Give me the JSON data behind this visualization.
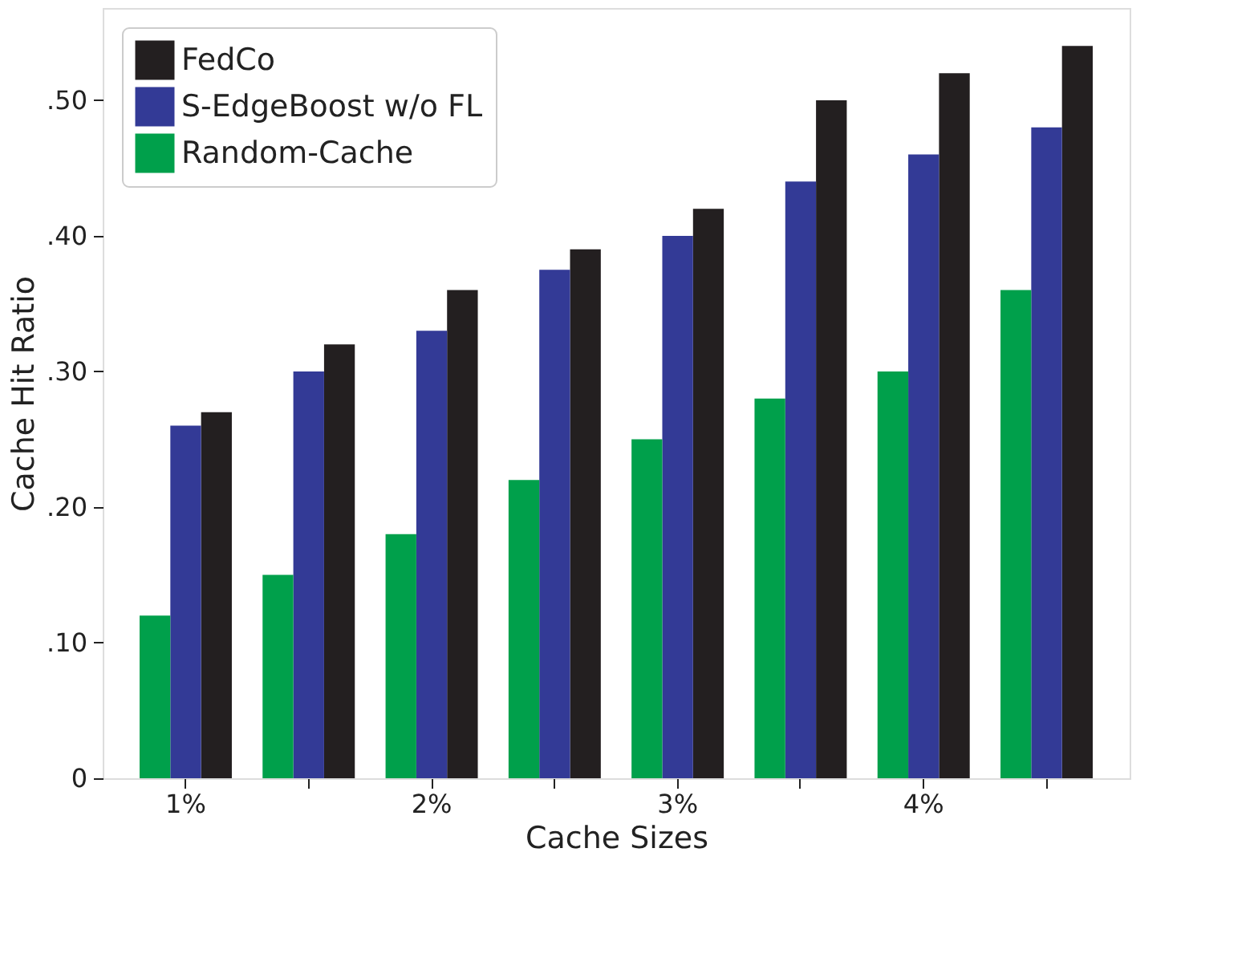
{
  "chart_data": {
    "type": "bar",
    "xlabel": "Cache Sizes",
    "ylabel": "Cache Hit Ratio",
    "categories": [
      "1%",
      null,
      "2%",
      null,
      "3%",
      null,
      "4%",
      null
    ],
    "series": [
      {
        "name": "FedCo",
        "color": "#231f20",
        "values": [
          0.27,
          0.32,
          0.36,
          0.39,
          0.42,
          0.5,
          0.52,
          0.54
        ]
      },
      {
        "name": "S-EdgeBoost w/o FL",
        "color": "#333a96",
        "values": [
          0.26,
          0.3,
          0.33,
          0.375,
          0.4,
          0.44,
          0.46,
          0.48
        ]
      },
      {
        "name": "Random-Cache",
        "color": "#00a04b",
        "values": [
          0.12,
          0.15,
          0.18,
          0.22,
          0.25,
          0.28,
          0.3,
          0.36
        ]
      }
    ],
    "ylim": [
      0,
      0.568
    ],
    "yticks": [
      0,
      {
        "value": 0.1,
        "label": ".10"
      },
      {
        "value": 0.2,
        "label": ".20"
      },
      {
        "value": 0.3,
        "label": ".30"
      },
      {
        "value": 0.4,
        "label": ".40"
      },
      {
        "value": 0.5,
        "label": ".50"
      }
    ],
    "legend": "top left",
    "grid": false
  }
}
